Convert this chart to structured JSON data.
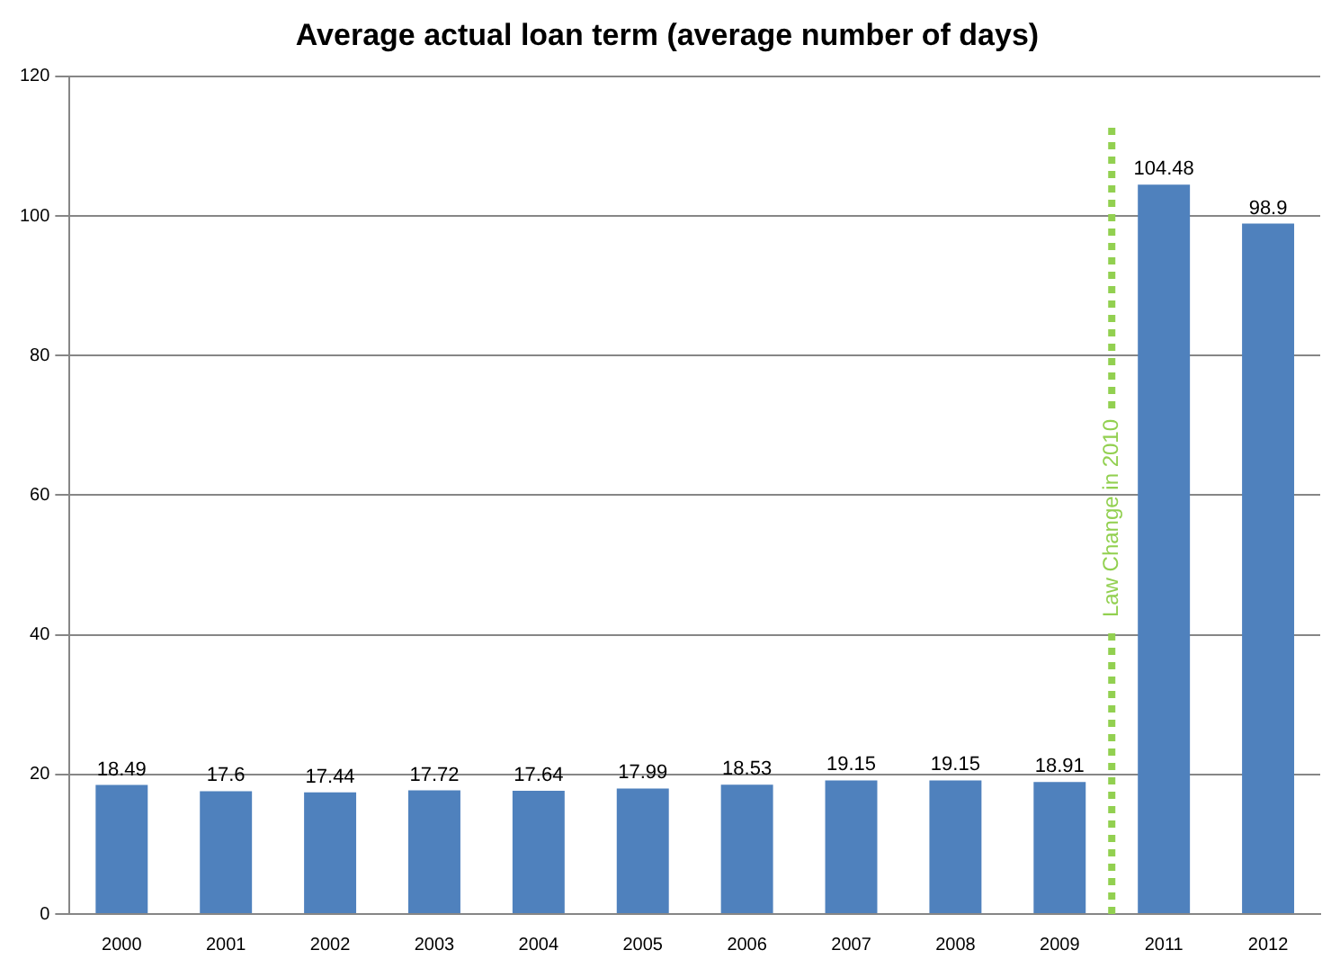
{
  "chart_data": {
    "type": "bar",
    "title": "Average actual loan term (average number of days)",
    "categories": [
      "2000",
      "2001",
      "2002",
      "2003",
      "2004",
      "2005",
      "2006",
      "2007",
      "2008",
      "2009",
      "2011",
      "2012"
    ],
    "values": [
      18.49,
      17.6,
      17.44,
      17.72,
      17.64,
      17.99,
      18.53,
      19.15,
      19.15,
      18.91,
      104.48,
      98.9
    ],
    "color": "#4f81bd",
    "ylim": [
      0,
      120
    ],
    "yticks": [
      0,
      20,
      40,
      60,
      80,
      100,
      120
    ],
    "grid": "y",
    "legend": false,
    "data_labels": true,
    "annotations": [
      "Law Change in 2010"
    ]
  }
}
